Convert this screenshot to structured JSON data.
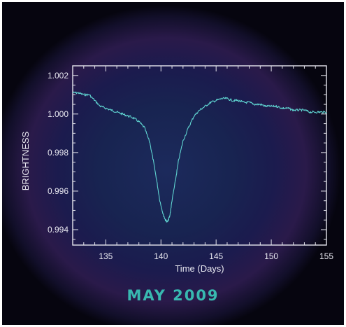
{
  "caption": "MAY 2009",
  "colors": {
    "line": "#5fd3d0",
    "axis": "#e6e6ee",
    "caption": "#38b8b0"
  },
  "chart_data": {
    "type": "line",
    "title": "",
    "xlabel": "Time (Days)",
    "ylabel": "BRIGHTNESS",
    "xlim": [
      132,
      155
    ],
    "ylim": [
      0.9932,
      1.0025
    ],
    "xticks": [
      135,
      140,
      145,
      150,
      155
    ],
    "yticks": [
      0.994,
      0.996,
      0.998,
      1.0,
      1.002
    ],
    "xtick_labels": [
      "135",
      "140",
      "145",
      "150",
      "155"
    ],
    "ytick_labels": [
      "0.994",
      "0.996",
      "0.998",
      "1.000",
      "1.002"
    ],
    "grid": false,
    "series": [
      {
        "x": [
          132.0,
          132.5,
          133.0,
          133.5,
          134.0,
          134.5,
          135.0,
          135.5,
          136.0,
          136.5,
          137.0,
          137.5,
          138.0,
          138.5,
          139.0,
          139.3,
          139.6,
          139.9,
          140.2,
          140.4,
          140.6,
          140.8,
          141.0,
          141.3,
          141.6,
          142.0,
          142.5,
          143.0,
          143.5,
          144.0,
          144.5,
          145.0,
          145.5,
          146.0,
          146.5,
          147.0,
          147.5,
          148.0,
          148.5,
          149.0,
          149.5,
          150.0,
          150.5,
          151.0,
          151.5,
          152.0,
          152.5,
          153.0,
          153.5,
          154.0,
          154.5,
          155.0
        ],
        "y": [
          1.0011,
          1.0011,
          1.001,
          1.001,
          1.0007,
          1.0004,
          1.0003,
          1.0002,
          1.0001,
          1.0,
          0.9999,
          0.9998,
          0.9996,
          0.9993,
          0.9985,
          0.9976,
          0.9966,
          0.9955,
          0.9948,
          0.9945,
          0.9944,
          0.9947,
          0.9955,
          0.9965,
          0.9976,
          0.9986,
          0.9993,
          0.9999,
          1.0002,
          1.0004,
          1.0006,
          1.0007,
          1.0008,
          1.0008,
          1.0007,
          1.0007,
          1.0006,
          1.0006,
          1.0005,
          1.0005,
          1.0004,
          1.0004,
          1.0004,
          1.0003,
          1.0003,
          1.0002,
          1.0002,
          1.0002,
          1.0001,
          1.0001,
          1.0001,
          1.0001
        ]
      }
    ]
  }
}
